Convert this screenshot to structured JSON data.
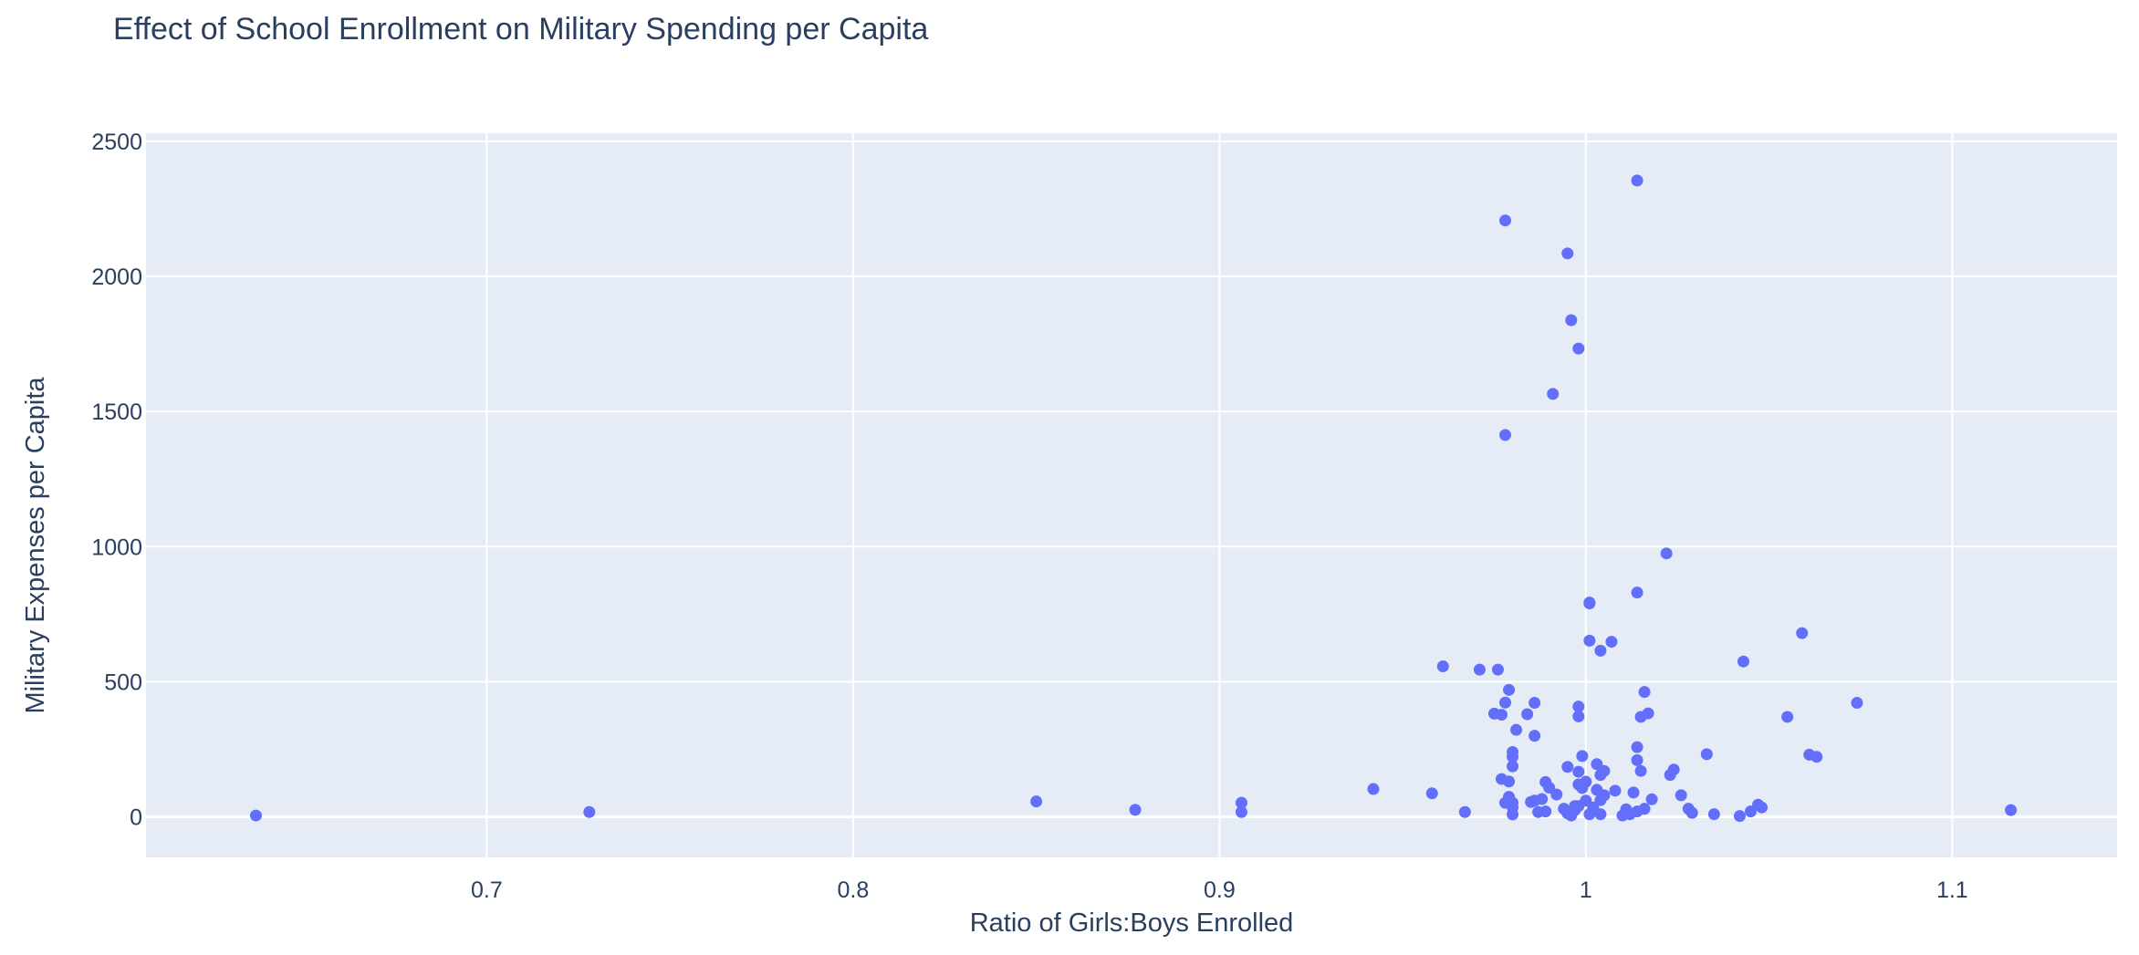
{
  "chart_data": {
    "type": "scatter",
    "title": "Effect of School Enrollment on Military Spending per Capita",
    "xlabel": "Ratio of Girls:Boys Enrolled",
    "ylabel": "Military Expenses per Capita",
    "xlim": [
      0.607,
      1.145
    ],
    "ylim": [
      -150,
      2530
    ],
    "xticks": [
      0.7,
      0.8,
      0.9,
      1,
      1.1
    ],
    "xtick_labels": [
      "0.7",
      "0.8",
      "0.9",
      "1",
      "1.1"
    ],
    "yticks": [
      0,
      500,
      1000,
      1500,
      2000,
      2500
    ],
    "ytick_labels": [
      "0",
      "500",
      "1000",
      "1500",
      "2000",
      "2500"
    ],
    "grid": true,
    "legend": "none",
    "colors": {
      "marker": "#636efa",
      "plot_bg": "#e5ecf6",
      "grid": "#ffffff",
      "text": "#2a3f5f"
    },
    "series": [
      {
        "points": [
          [
            0.637,
            5
          ],
          [
            0.728,
            18
          ],
          [
            0.85,
            57
          ],
          [
            0.877,
            26
          ],
          [
            0.906,
            52
          ],
          [
            0.906,
            18
          ],
          [
            0.942,
            103
          ],
          [
            0.958,
            87
          ],
          [
            0.961,
            557
          ],
          [
            0.967,
            18
          ],
          [
            0.971,
            545
          ],
          [
            0.975,
            382
          ],
          [
            0.976,
            545
          ],
          [
            0.977,
            378
          ],
          [
            0.977,
            140
          ],
          [
            0.978,
            2207
          ],
          [
            0.978,
            1413
          ],
          [
            0.978,
            423
          ],
          [
            0.978,
            52
          ],
          [
            0.979,
            470
          ],
          [
            0.979,
            131
          ],
          [
            0.979,
            74
          ],
          [
            0.98,
            240
          ],
          [
            0.98,
            222
          ],
          [
            0.98,
            187
          ],
          [
            0.98,
            52
          ],
          [
            0.98,
            35
          ],
          [
            0.98,
            9
          ],
          [
            0.981,
            322
          ],
          [
            0.984,
            380
          ],
          [
            0.985,
            55
          ],
          [
            0.986,
            300
          ],
          [
            0.986,
            422
          ],
          [
            0.986,
            60
          ],
          [
            0.987,
            18
          ],
          [
            0.988,
            66
          ],
          [
            0.989,
            129
          ],
          [
            0.989,
            20
          ],
          [
            0.99,
            108
          ],
          [
            0.991,
            1565
          ],
          [
            0.992,
            83
          ],
          [
            0.994,
            30
          ],
          [
            0.995,
            2085
          ],
          [
            0.995,
            185
          ],
          [
            0.995,
            13
          ],
          [
            0.996,
            1838
          ],
          [
            0.996,
            5
          ],
          [
            0.997,
            40
          ],
          [
            0.997,
            25
          ],
          [
            0.998,
            1733
          ],
          [
            0.998,
            408
          ],
          [
            0.998,
            372
          ],
          [
            0.998,
            167
          ],
          [
            0.998,
            120
          ],
          [
            0.998,
            40
          ],
          [
            0.999,
            225
          ],
          [
            0.999,
            107
          ],
          [
            1.0,
            60
          ],
          [
            1.0,
            130
          ],
          [
            1.001,
            10
          ],
          [
            1.001,
            793
          ],
          [
            1.001,
            790
          ],
          [
            1.001,
            652
          ],
          [
            1.002,
            35
          ],
          [
            1.003,
            195
          ],
          [
            1.003,
            100
          ],
          [
            1.004,
            155
          ],
          [
            1.004,
            62
          ],
          [
            1.004,
            10
          ],
          [
            1.004,
            615
          ],
          [
            1.005,
            170
          ],
          [
            1.005,
            80
          ],
          [
            1.007,
            648
          ],
          [
            1.008,
            97
          ],
          [
            1.01,
            5
          ],
          [
            1.011,
            28
          ],
          [
            1.012,
            10
          ],
          [
            1.013,
            90
          ],
          [
            1.014,
            2355
          ],
          [
            1.014,
            830
          ],
          [
            1.014,
            258
          ],
          [
            1.014,
            210
          ],
          [
            1.014,
            20
          ],
          [
            1.015,
            370
          ],
          [
            1.015,
            170
          ],
          [
            1.016,
            30
          ],
          [
            1.016,
            462
          ],
          [
            1.017,
            383
          ],
          [
            1.018,
            65
          ],
          [
            1.022,
            975
          ],
          [
            1.023,
            155
          ],
          [
            1.024,
            175
          ],
          [
            1.026,
            80
          ],
          [
            1.028,
            30
          ],
          [
            1.029,
            15
          ],
          [
            1.033,
            232
          ],
          [
            1.035,
            10
          ],
          [
            1.042,
            3
          ],
          [
            1.043,
            575
          ],
          [
            1.045,
            20
          ],
          [
            1.047,
            45
          ],
          [
            1.048,
            35
          ],
          [
            1.055,
            370
          ],
          [
            1.059,
            680
          ],
          [
            1.061,
            230
          ],
          [
            1.063,
            222
          ],
          [
            1.074,
            422
          ],
          [
            1.116,
            25
          ]
        ]
      }
    ]
  }
}
